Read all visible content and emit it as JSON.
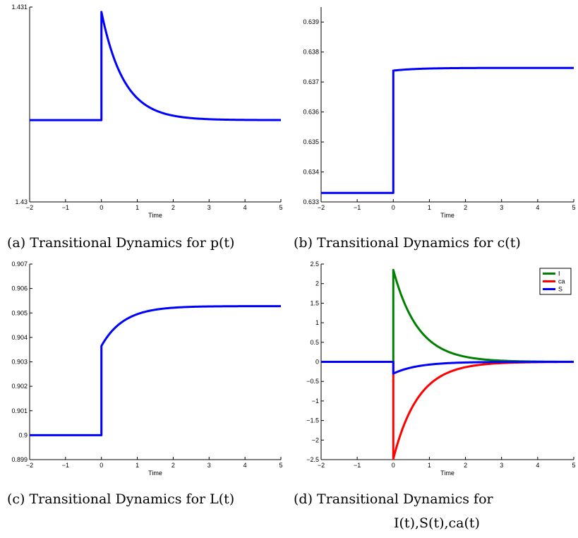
{
  "chart_data": [
    {
      "id": "a",
      "type": "line",
      "caption": "(a)  Transitional Dynamics for p(t)",
      "xlabel": "Time",
      "xlim": [
        -2,
        5
      ],
      "ylim": [
        1.43,
        1.431
      ],
      "xticks": [
        -2,
        -1,
        0,
        1,
        2,
        3,
        4,
        5
      ],
      "xtick_labels": [
        "−2",
        "−1",
        "0",
        "1",
        "2",
        "3",
        "4",
        "5"
      ],
      "yticks": [
        1.43,
        1.431
      ],
      "ytick_labels": [
        "1.43",
        "1.431"
      ],
      "series": [
        {
          "color": "#0000ff",
          "pre": 1.43042,
          "jump": 1.430975,
          "ss": 1.43042,
          "rate": 1.6
        }
      ]
    },
    {
      "id": "b",
      "type": "line",
      "caption": "(b)  Transitional Dynamics for c(t)",
      "xlabel": "Time",
      "xlim": [
        -2,
        5
      ],
      "ylim": [
        0.633,
        0.6395
      ],
      "xticks": [
        -2,
        -1,
        0,
        1,
        2,
        3,
        4,
        5
      ],
      "xtick_labels": [
        "−2",
        "−1",
        "0",
        "1",
        "2",
        "3",
        "4",
        "5"
      ],
      "yticks": [
        0.633,
        0.634,
        0.635,
        0.636,
        0.637,
        0.638,
        0.639
      ],
      "ytick_labels": [
        "0.633",
        "0.634",
        "0.635",
        "0.636",
        "0.637",
        "0.638",
        "0.639"
      ],
      "series": [
        {
          "color": "#0000ff",
          "pre": 0.6333,
          "jump": 0.63738,
          "ss": 0.63747,
          "rate": 1.5
        }
      ]
    },
    {
      "id": "c",
      "type": "line",
      "caption": "(c)  Transitional Dynamics for L(t)",
      "xlabel": "Time",
      "xlim": [
        -2,
        5
      ],
      "ylim": [
        0.899,
        0.907
      ],
      "xticks": [
        -2,
        -1,
        0,
        1,
        2,
        3,
        4,
        5
      ],
      "xtick_labels": [
        "−2",
        "−1",
        "0",
        "1",
        "2",
        "3",
        "4",
        "5"
      ],
      "yticks": [
        0.899,
        0.9,
        0.901,
        0.902,
        0.903,
        0.904,
        0.905,
        0.906,
        0.907
      ],
      "ytick_labels": [
        "0.899",
        "0.9",
        "0.901",
        "0.902",
        "0.903",
        "0.904",
        "0.905",
        "0.906",
        "0.907"
      ],
      "series": [
        {
          "color": "#0000ff",
          "pre": 0.9,
          "jump": 0.90365,
          "ss": 0.90528,
          "rate": 1.6
        }
      ]
    },
    {
      "id": "d",
      "type": "line",
      "caption_lines": [
        "(d)      Transitional Dynamics for",
        "I(t),S(t),ca(t)"
      ],
      "xlabel": "Time",
      "xlim": [
        -2,
        5
      ],
      "ylim": [
        -2.5,
        2.5
      ],
      "xticks": [
        -2,
        -1,
        0,
        1,
        2,
        3,
        4,
        5
      ],
      "xtick_labels": [
        "−2",
        "−1",
        "0",
        "1",
        "2",
        "3",
        "4",
        "5"
      ],
      "yticks": [
        -2.5,
        -2,
        -1.5,
        -1,
        -0.5,
        0,
        0.5,
        1,
        1.5,
        2,
        2.5
      ],
      "ytick_labels": [
        "−2.5",
        "−2",
        "−1.5",
        "−1",
        "−0.5",
        "0",
        "0.5",
        "1",
        "1.5",
        "2",
        "2.5"
      ],
      "legend": {
        "position": "top-right"
      },
      "series": [
        {
          "name": "I",
          "color": "#008000",
          "pre": 0,
          "jump": 2.35,
          "ss": 0,
          "rate": 1.45
        },
        {
          "name": "ca",
          "color": "#ff0000",
          "pre": 0,
          "jump": -2.48,
          "ss": 0,
          "rate": 1.45
        },
        {
          "name": "S",
          "color": "#0000ff",
          "pre": 0,
          "jump": -0.3,
          "ss": 0,
          "rate": 1.45
        }
      ]
    }
  ]
}
